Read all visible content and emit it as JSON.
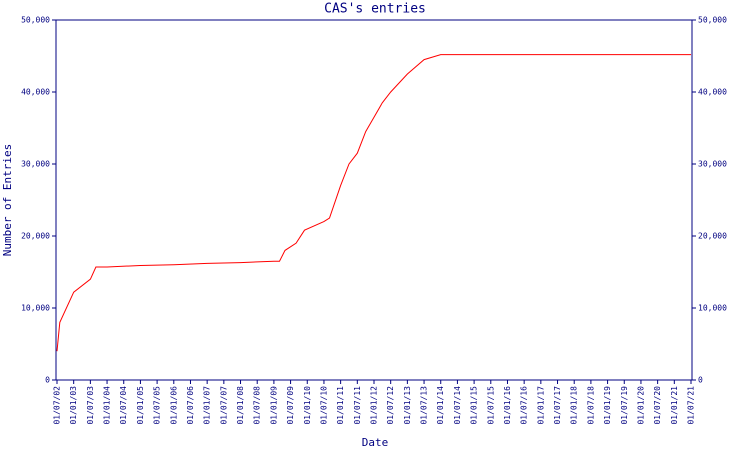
{
  "chart_data": {
    "type": "line",
    "title": "CAS's entries",
    "x_label": "Date",
    "y_label": "Number of Entries",
    "x": [
      "2002-07",
      "2002-08",
      "2003-01",
      "2003-07",
      "2003-09",
      "2004-01",
      "2005-01",
      "2006-01",
      "2007-01",
      "2008-01",
      "2009-01",
      "2009-03",
      "2009-05",
      "2009-09",
      "2009-12",
      "2010-07",
      "2010-09",
      "2011-01",
      "2011-04",
      "2011-07",
      "2011-10",
      "2012-01",
      "2012-04",
      "2012-07",
      "2013-01",
      "2013-07",
      "2014-01",
      "2021-07"
    ],
    "series": [
      {
        "name": "entries",
        "color": "#ff0000",
        "values": [
          4000,
          8000,
          12200,
          14000,
          15700,
          15700,
          15900,
          16000,
          16200,
          16300,
          16500,
          16500,
          18000,
          19000,
          20800,
          22000,
          22500,
          27000,
          30000,
          31500,
          34500,
          36500,
          38500,
          40000,
          42500,
          44500,
          45200,
          45200
        ]
      }
    ],
    "xlim": [
      "2002-07",
      "2021-07"
    ],
    "xticks": [
      {
        "value": "2002-07",
        "label": "01/07/02"
      },
      {
        "value": "2003-01",
        "label": "01/01/03"
      },
      {
        "value": "2003-07",
        "label": "01/07/03"
      },
      {
        "value": "2004-01",
        "label": "01/01/04"
      },
      {
        "value": "2004-07",
        "label": "01/07/04"
      },
      {
        "value": "2005-01",
        "label": "01/01/05"
      },
      {
        "value": "2005-07",
        "label": "01/07/05"
      },
      {
        "value": "2006-01",
        "label": "01/01/06"
      },
      {
        "value": "2006-07",
        "label": "01/07/06"
      },
      {
        "value": "2007-01",
        "label": "01/01/07"
      },
      {
        "value": "2007-07",
        "label": "01/07/07"
      },
      {
        "value": "2008-01",
        "label": "01/01/08"
      },
      {
        "value": "2008-07",
        "label": "01/07/08"
      },
      {
        "value": "2009-01",
        "label": "01/01/09"
      },
      {
        "value": "2009-07",
        "label": "01/07/09"
      },
      {
        "value": "2010-01",
        "label": "01/01/10"
      },
      {
        "value": "2010-07",
        "label": "01/07/10"
      },
      {
        "value": "2011-01",
        "label": "01/01/11"
      },
      {
        "value": "2011-07",
        "label": "01/07/11"
      },
      {
        "value": "2012-01",
        "label": "01/01/12"
      },
      {
        "value": "2012-07",
        "label": "01/07/12"
      },
      {
        "value": "2013-01",
        "label": "01/01/13"
      },
      {
        "value": "2013-07",
        "label": "01/07/13"
      },
      {
        "value": "2014-01",
        "label": "01/01/14"
      },
      {
        "value": "2014-07",
        "label": "01/07/14"
      },
      {
        "value": "2015-01",
        "label": "01/01/15"
      },
      {
        "value": "2015-07",
        "label": "01/07/15"
      },
      {
        "value": "2016-01",
        "label": "01/01/16"
      },
      {
        "value": "2016-07",
        "label": "01/07/16"
      },
      {
        "value": "2017-01",
        "label": "01/01/17"
      },
      {
        "value": "2017-07",
        "label": "01/07/17"
      },
      {
        "value": "2018-01",
        "label": "01/01/18"
      },
      {
        "value": "2018-07",
        "label": "01/07/18"
      },
      {
        "value": "2019-01",
        "label": "01/01/19"
      },
      {
        "value": "2019-07",
        "label": "01/07/19"
      },
      {
        "value": "2020-01",
        "label": "01/01/20"
      },
      {
        "value": "2020-07",
        "label": "01/07/20"
      },
      {
        "value": "2021-01",
        "label": "01/01/21"
      },
      {
        "value": "2021-07",
        "label": "01/07/21"
      }
    ],
    "ylim": [
      0,
      50000
    ],
    "yticks": [
      0,
      {
        "value": 10000,
        "label": "10,000"
      },
      {
        "value": 20000,
        "label": "20,000"
      },
      {
        "value": 30000,
        "label": "30,000"
      },
      {
        "value": 40000,
        "label": "40,000"
      },
      {
        "value": 50000,
        "label": "50,000"
      }
    ]
  }
}
